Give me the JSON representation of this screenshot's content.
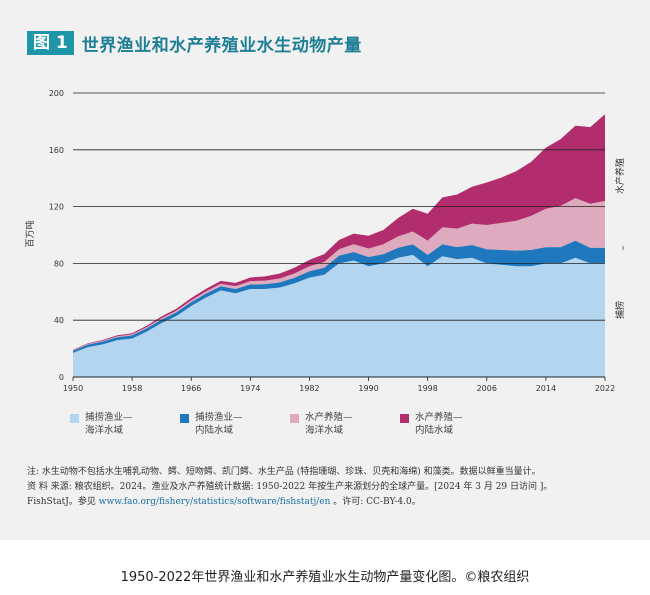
{
  "figure": {
    "badge": "图 1",
    "title": "世界渔业和水产养殖业水生动物产量",
    "footnote": {
      "line1": "注: 水生动物不包括水生哺乳动物、鳄、短吻鳄、凯门鳄、水生产品 (特指珊瑚、珍珠、贝壳和海绵) 和藻类。数据以鲜重当量计。",
      "line2": "资 料 来源: 粮农组织。2024。渔业及水产养殖统计数据: 1950-2022 年按生产来源划分的全球产量。[2024 年 3 月 29 日访问 ]。",
      "line3_prefix": "FishStatJ。参见",
      "line3_link": "www.fao.org/fishery/statistics/software/fishstatj/en",
      "line3_suffix": "。许可: CC-BY-4.0。"
    }
  },
  "caption": "1950-2022年世界渔业和水产养殖业水生动物产量变化图。©粮农组织",
  "colors": {
    "accent": "#1f95a8",
    "capture_marine": "#b3d5ef",
    "capture_inland": "#1f78bd",
    "aqua_marine": "#deaabd",
    "aqua_inland": "#b22d6d"
  },
  "chart_data": {
    "type": "area",
    "stacked": true,
    "title": "世界渔业和水产养殖业水生动物产量",
    "ylabel": "百万吨",
    "ylim": [
      0,
      200
    ],
    "yticks": [
      0,
      40,
      80,
      120,
      160,
      200
    ],
    "xlim": [
      1950,
      2022
    ],
    "xticks": [
      1950,
      1958,
      1966,
      1974,
      1982,
      1990,
      1998,
      2006,
      2014,
      2022
    ],
    "grid": "horizontal",
    "legend_position": "bottom",
    "right_annotations": {
      "aquaculture": "水产养殖",
      "capture": "捕捞"
    },
    "x": [
      1950,
      1952,
      1954,
      1956,
      1958,
      1960,
      1962,
      1964,
      1966,
      1968,
      1970,
      1972,
      1974,
      1976,
      1978,
      1980,
      1982,
      1984,
      1986,
      1988,
      1990,
      1992,
      1994,
      1996,
      1998,
      2000,
      2002,
      2004,
      2006,
      2008,
      2010,
      2012,
      2014,
      2016,
      2018,
      2020,
      2022
    ],
    "series": [
      {
        "name": "捕捞渔业—海洋水域",
        "color": "#b3d5ef",
        "values": [
          17,
          21,
          23,
          26,
          27,
          32,
          38,
          43,
          50,
          56,
          61,
          59,
          62,
          62,
          63,
          66,
          70,
          72,
          80,
          82,
          78,
          80,
          84,
          86,
          78,
          85,
          83,
          84,
          80,
          79,
          78,
          78,
          80,
          80,
          84,
          80,
          80
        ]
      },
      {
        "name": "捕捞渔业—内陆水域",
        "color": "#1f78bd",
        "values": [
          1.5,
          1.8,
          2,
          2.1,
          2.3,
          2.4,
          2.5,
          2.6,
          2.7,
          2.8,
          2.9,
          3,
          3.2,
          3.4,
          3.6,
          4,
          4.5,
          5,
          5.5,
          6,
          6.5,
          6.5,
          7,
          7.5,
          8,
          8.5,
          8.5,
          9,
          10,
          10.5,
          11,
          11.5,
          11.5,
          11.5,
          12,
          11,
          11
        ]
      },
      {
        "name": "水产养殖—海洋水域",
        "color": "#deaabd",
        "values": [
          0.3,
          0.4,
          0.5,
          0.6,
          0.7,
          0.8,
          1,
          1.1,
          1.3,
          1.5,
          1.8,
          2,
          2.3,
          2.5,
          2.8,
          3,
          3.5,
          4,
          4.5,
          5.5,
          6,
          7,
          8,
          9,
          10,
          12,
          13,
          15,
          17,
          19,
          21,
          24,
          27,
          29,
          30,
          31,
          33
        ]
      },
      {
        "name": "水产养殖—内陆水域",
        "color": "#b22d6d",
        "values": [
          0.4,
          0.5,
          0.6,
          0.7,
          0.8,
          1,
          1.2,
          1.4,
          1.6,
          1.8,
          2,
          2.3,
          2.6,
          3,
          3.5,
          4,
          4.5,
          5.5,
          6.5,
          7.5,
          9,
          10,
          13,
          16,
          19,
          21,
          24,
          26,
          30,
          32,
          35,
          38,
          43,
          47,
          51,
          54,
          61
        ]
      }
    ]
  },
  "legend": [
    {
      "line1": "捕捞渔业—",
      "line2": "海洋水域",
      "color": "#b3d5ef"
    },
    {
      "line1": "捕捞渔业—",
      "line2": "内陆水域",
      "color": "#1f78bd"
    },
    {
      "line1": "水产养殖—",
      "line2": "海洋水域",
      "color": "#deaabd"
    },
    {
      "line1": "水产养殖—",
      "line2": "内陆水域",
      "color": "#b22d6d"
    }
  ]
}
